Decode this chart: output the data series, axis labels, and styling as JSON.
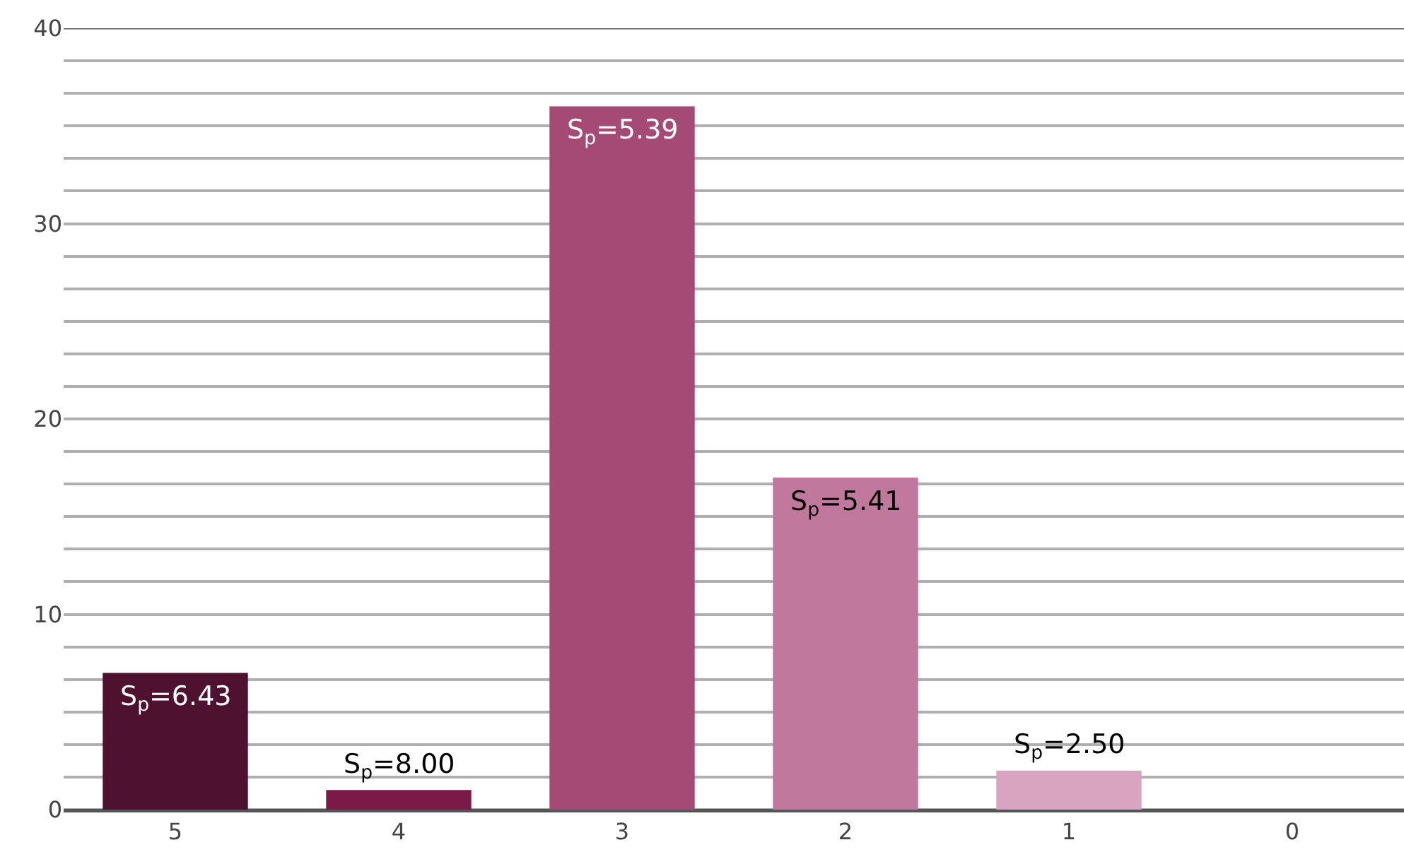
{
  "chart_data": {
    "type": "bar",
    "categories": [
      "5",
      "4",
      "3",
      "2",
      "1",
      "0"
    ],
    "values": [
      7,
      1,
      36,
      17,
      2,
      0
    ],
    "colors": [
      "#4e1230",
      "#7a1a48",
      "#a44a74",
      "#c0789c",
      "#d8a4bf",
      "#d8a4bf"
    ],
    "annotations": [
      {
        "text": "S$_{p}$=6.43",
        "x": "5",
        "y": 7
      },
      {
        "text": "S$_{p}$=8.00",
        "x": "4",
        "y": 1
      },
      {
        "text": "S$_{p}$=5.39",
        "x": "3",
        "y": 36
      },
      {
        "text": "S$_{p}$=5.41",
        "x": "2",
        "y": 17
      },
      {
        "text": "S$_{p}$=2.50",
        "x": "1",
        "y": 2
      }
    ],
    "ylim": [
      0,
      40
    ],
    "yticks": [
      0,
      {
        "value": 1.67,
        "label": null
      },
      {
        "value": 3.33,
        "label": null
      },
      {
        "value": 5,
        "label": null
      },
      {
        "value": 6.67,
        "label": null
      },
      {
        "value": 8.33,
        "label": null
      },
      10,
      {
        "value": 11.67,
        "label": null
      },
      {
        "value": 13.33,
        "label": null
      },
      {
        "value": 15,
        "label": null
      },
      {
        "value": 16.67,
        "label": null
      },
      {
        "value": 18.33,
        "label": null
      },
      20,
      {
        "value": 21.67,
        "label": null
      },
      {
        "value": 23.33,
        "label": null
      },
      {
        "value": 25,
        "label": null
      },
      {
        "value": 26.67,
        "label": null
      },
      {
        "value": 28.33,
        "label": null
      },
      30,
      {
        "value": 31.67,
        "label": null
      },
      {
        "value": 33.33,
        "label": null
      },
      {
        "value": 35,
        "label": null
      },
      {
        "value": 36.67,
        "label": null
      },
      {
        "value": 38.33,
        "label": null
      },
      40
    ],
    "grid": "y"
  }
}
